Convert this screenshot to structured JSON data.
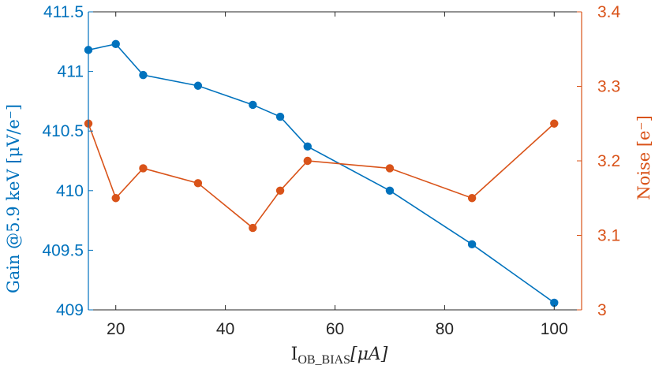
{
  "chart_data": {
    "type": "line",
    "xlabel_main": "I",
    "xlabel_sub": "OB_BIAS",
    "xlabel_unit": "[μA]",
    "xlim": [
      15,
      105
    ],
    "xticks": [
      20,
      40,
      60,
      80,
      100
    ],
    "x": [
      15,
      20,
      25,
      35,
      45,
      50,
      55,
      70,
      85,
      100
    ],
    "axes": {
      "left": {
        "label": "Gain @5.9 keV [μV/e⁻]",
        "ylim": [
          409,
          411.5
        ],
        "ticks": [
          409,
          409.5,
          410,
          410.5,
          411,
          411.5
        ],
        "tick_labels": [
          "409",
          "409.5",
          "410",
          "410.5",
          "411",
          "411.5"
        ],
        "color": "#0072BD"
      },
      "right": {
        "label": "Noise [e⁻]",
        "ylim": [
          3.0,
          3.4
        ],
        "ticks": [
          3.0,
          3.1,
          3.2,
          3.3,
          3.4
        ],
        "tick_labels": [
          "3",
          "3.1",
          "3.2",
          "3.3",
          "3.4"
        ],
        "color": "#D95319"
      }
    },
    "series": [
      {
        "name": "Gain",
        "axis": "left",
        "color": "#0072BD",
        "values": [
          411.18,
          411.23,
          410.97,
          410.88,
          410.72,
          410.62,
          410.37,
          410.0,
          409.55,
          409.06
        ]
      },
      {
        "name": "Noise",
        "axis": "right",
        "color": "#D95319",
        "values": [
          3.25,
          3.15,
          3.19,
          3.17,
          3.11,
          3.16,
          3.2,
          3.19,
          3.15,
          3.25
        ]
      }
    ]
  }
}
